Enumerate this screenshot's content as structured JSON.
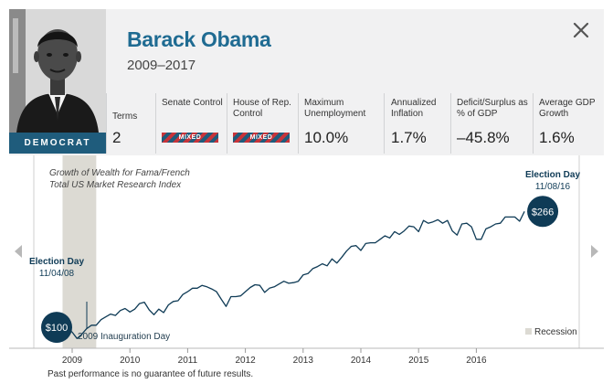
{
  "president": {
    "name": "Barack Obama",
    "years": "2009–2017",
    "party": "DEMOCRAT"
  },
  "stats": [
    {
      "label": "Terms",
      "value": "2"
    },
    {
      "label": "Senate Control",
      "value": "MIXED",
      "badge": true
    },
    {
      "label": "House of Rep. Control",
      "value": "MIXED",
      "badge": true
    },
    {
      "label": "Maximum Unemployment",
      "value": "10.0%"
    },
    {
      "label": "Annualized Inflation",
      "value": "1.7%"
    },
    {
      "label": "Deficit/Surplus as % of GDP",
      "value": "–45.8%"
    },
    {
      "label": "Average GDP Growth",
      "value": "1.6%"
    }
  ],
  "colors": {
    "brand": "#1f6b92",
    "dark": "#0f3b56",
    "party_badge": "#1f5c7c",
    "recession": "#dcdad3",
    "mixed_red": "#c8343a"
  },
  "icons": {
    "close": "close-icon",
    "prev": "chevron-left-icon",
    "next": "chevron-right-icon"
  },
  "chart_data": {
    "type": "line",
    "title": "Growth of Wealth for Fama/French",
    "subtitle": "Total US Market Research Index",
    "x_ticks": [
      "2009",
      "2010",
      "2011",
      "2012",
      "2013",
      "2014",
      "2015",
      "2016"
    ],
    "xlim": [
      "2008-10",
      "2017-01"
    ],
    "ylim": [
      70,
      320
    ],
    "grid": false,
    "recession": {
      "label": "Recession",
      "start": "2008-11",
      "end": "2009-06"
    },
    "start_annotation": {
      "title": "Election Day",
      "date": "11/04/08",
      "value_label": "$100"
    },
    "end_annotation": {
      "title": "Election Day",
      "date": "11/08/16",
      "value_label": "$266"
    },
    "inauguration": {
      "label": "2009 Inauguration Day",
      "date": "2009-01"
    },
    "series": [
      {
        "x": [
          "2008-11",
          "2008-12",
          "2009-01",
          "2009-02",
          "2009-03",
          "2009-04",
          "2009-05",
          "2009-06",
          "2009-07",
          "2009-08",
          "2009-09",
          "2009-10",
          "2009-11",
          "2009-12",
          "2010-01",
          "2010-02",
          "2010-03",
          "2010-04",
          "2010-05",
          "2010-06",
          "2010-07",
          "2010-08",
          "2010-09",
          "2010-10",
          "2010-11",
          "2010-12",
          "2011-01",
          "2011-02",
          "2011-03",
          "2011-04",
          "2011-05",
          "2011-06",
          "2011-07",
          "2011-08",
          "2011-09",
          "2011-10",
          "2011-11",
          "2011-12",
          "2012-01",
          "2012-02",
          "2012-03",
          "2012-04",
          "2012-05",
          "2012-06",
          "2012-07",
          "2012-08",
          "2012-09",
          "2012-10",
          "2012-11",
          "2012-12",
          "2013-01",
          "2013-02",
          "2013-03",
          "2013-04",
          "2013-05",
          "2013-06",
          "2013-07",
          "2013-08",
          "2013-09",
          "2013-10",
          "2013-11",
          "2013-12",
          "2014-01",
          "2014-02",
          "2014-03",
          "2014-04",
          "2014-05",
          "2014-06",
          "2014-07",
          "2014-08",
          "2014-09",
          "2014-10",
          "2014-11",
          "2014-12",
          "2015-01",
          "2015-02",
          "2015-03",
          "2015-04",
          "2015-05",
          "2015-06",
          "2015-07",
          "2015-08",
          "2015-09",
          "2015-10",
          "2015-11",
          "2015-12",
          "2016-01",
          "2016-02",
          "2016-03",
          "2016-04",
          "2016-05",
          "2016-06",
          "2016-07",
          "2016-08",
          "2016-09",
          "2016-10",
          "2016-11"
        ],
        "values": [
          100,
          99,
          93,
          84,
          90,
          98,
          103,
          103,
          111,
          115,
          119,
          117,
          124,
          127,
          122,
          126,
          134,
          136,
          125,
          118,
          126,
          121,
          132,
          137,
          138,
          147,
          151,
          156,
          156,
          160,
          158,
          155,
          151,
          140,
          130,
          144,
          144,
          145,
          151,
          157,
          161,
          160,
          150,
          156,
          158,
          162,
          166,
          163,
          164,
          166,
          175,
          177,
          184,
          187,
          191,
          188,
          198,
          192,
          200,
          209,
          216,
          217,
          210,
          220,
          221,
          221,
          226,
          231,
          228,
          237,
          233,
          238,
          245,
          244,
          237,
          253,
          249,
          251,
          254,
          249,
          253,
          238,
          232,
          248,
          249,
          244,
          226,
          226,
          241,
          244,
          248,
          249,
          258,
          258,
          258,
          252,
          266
        ]
      }
    ]
  },
  "footnote": "Past performance is no guarantee of future results."
}
